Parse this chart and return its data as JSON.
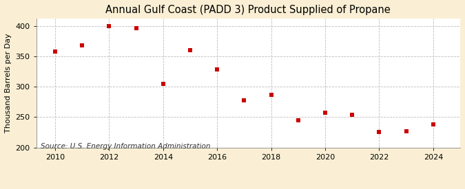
{
  "title": "Annual Gulf Coast (PADD 3) Product Supplied of Propane",
  "ylabel": "Thousand Barrels per Day",
  "source": "Source: U.S. Energy Information Administration",
  "years": [
    2010,
    2011,
    2012,
    2013,
    2014,
    2015,
    2016,
    2017,
    2018,
    2019,
    2020,
    2021,
    2022,
    2023,
    2024
  ],
  "values": [
    358,
    368,
    400,
    396,
    305,
    360,
    328,
    277,
    287,
    245,
    257,
    254,
    225,
    227,
    238
  ],
  "xlim": [
    2009.3,
    2025.0
  ],
  "ylim": [
    200,
    412
  ],
  "yticks": [
    200,
    250,
    300,
    350,
    400
  ],
  "xticks": [
    2010,
    2012,
    2014,
    2016,
    2018,
    2020,
    2022,
    2024
  ],
  "marker_color": "#cc0000",
  "marker": "s",
  "marker_size": 4,
  "bg_color": "#faefd4",
  "plot_bg_color": "#ffffff",
  "grid_color": "#bbbbbb",
  "title_fontsize": 10.5,
  "label_fontsize": 8,
  "tick_fontsize": 8,
  "source_fontsize": 7.5
}
